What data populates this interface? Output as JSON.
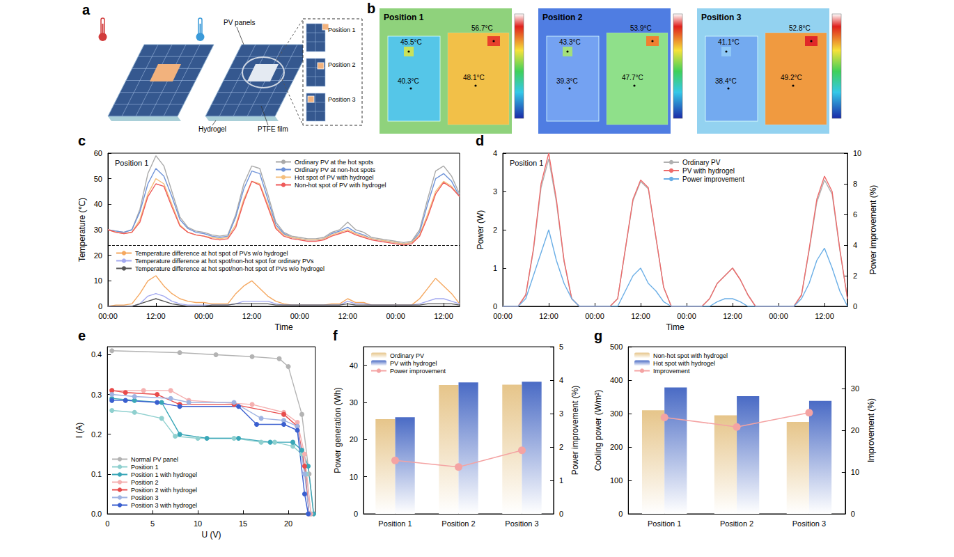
{
  "figure": {
    "panel_labels": [
      "a",
      "b",
      "c",
      "d",
      "e",
      "f",
      "g"
    ],
    "a": {
      "pv_panels": "PV panels",
      "hydrogel": "Hydrogel",
      "ptfe_film": "PTFE film",
      "positions": [
        "Position 1",
        "Position 2",
        "Position 3"
      ]
    },
    "b": {
      "images": [
        {
          "title": "Position 1",
          "readings": [
            "45.5°C",
            "56.7°C",
            "40.3°C",
            "48.1°C"
          ]
        },
        {
          "title": "Position 2",
          "readings": [
            "43.3°C",
            "53.9°C",
            "39.3°C",
            "47.7°C"
          ]
        },
        {
          "title": "Position 3",
          "readings": [
            "41.1°C",
            "52.8°C",
            "38.4°C",
            "49.2°C"
          ]
        }
      ]
    }
  },
  "chart_data": [
    {
      "type": "line",
      "annotation": "Position 1",
      "xlabel": "Time",
      "ylabel": "Temperature (℃)",
      "x": [
        0,
        2,
        4,
        6,
        8,
        10,
        12,
        14,
        16,
        18,
        20,
        22,
        24,
        26,
        28,
        30,
        32,
        34,
        36,
        38,
        40,
        42,
        44,
        46,
        48,
        50,
        52,
        54,
        56,
        58,
        60,
        62,
        64,
        66,
        68,
        70,
        72,
        74,
        76,
        78,
        80,
        82,
        84,
        86,
        88
      ],
      "xlim": [
        0,
        88
      ],
      "xticks": [
        {
          "value": 0,
          "label": "00:00"
        },
        {
          "value": 12,
          "label": "12:00"
        },
        {
          "value": 24,
          "label": "00:00"
        },
        {
          "value": 36,
          "label": "12:00"
        },
        {
          "value": 48,
          "label": "00:00"
        },
        {
          "value": 60,
          "label": "12:00"
        },
        {
          "value": 72,
          "label": "00:00"
        },
        {
          "value": 84,
          "label": "12:00"
        }
      ],
      "ylim": [
        0,
        60
      ],
      "yticks": [
        0,
        10,
        20,
        30,
        40,
        50,
        60
      ],
      "separator_y": 24,
      "grid": false,
      "legend": "top",
      "series": [
        {
          "name": "Ordinary PV at the hot spots",
          "color": "#a9a9a9",
          "values": [
            30,
            29.5,
            29,
            30,
            38,
            52,
            59,
            55,
            45,
            35,
            31,
            29.5,
            29,
            28,
            27.5,
            28,
            36,
            48,
            55,
            54,
            44,
            33,
            29,
            27.5,
            27,
            26.5,
            26.5,
            27,
            29,
            30,
            33,
            30,
            29,
            27,
            26.5,
            26,
            25.5,
            25,
            25.5,
            30,
            42,
            53,
            55,
            51,
            44
          ]
        },
        {
          "name": "Ordinary PV at non-hot spots",
          "color": "#6f93d8",
          "values": [
            30,
            29.5,
            29,
            30,
            37,
            48,
            54,
            51,
            43,
            34,
            30.5,
            29,
            28.5,
            27.5,
            27,
            27.5,
            35,
            46,
            53,
            52,
            42,
            32,
            28.5,
            27,
            26.5,
            26,
            26,
            26.5,
            28.5,
            29.5,
            31,
            29,
            28,
            26.5,
            26,
            25.5,
            25,
            24.5,
            25,
            29,
            40,
            50,
            52,
            49,
            43
          ]
        },
        {
          "name": "Hot spot of PV with hydrogel",
          "color": "#f5bf7d",
          "values": [
            30,
            29,
            28.5,
            29,
            34,
            44,
            50,
            48,
            40,
            32,
            29,
            28,
            27.5,
            27,
            26.5,
            27,
            32,
            42,
            49,
            48,
            40,
            31,
            28,
            27,
            26.5,
            26,
            26,
            26.5,
            28,
            29,
            30,
            28.5,
            27.5,
            26.5,
            26,
            25.5,
            25,
            24.5,
            25,
            28,
            36,
            45,
            49,
            47,
            43
          ]
        },
        {
          "name": "Non-hot spot of PV with hydrogel",
          "color": "#ee5a5a",
          "values": [
            30,
            29,
            28.5,
            29,
            33,
            43,
            48,
            47,
            39,
            31.5,
            29,
            28,
            27.5,
            26.5,
            26,
            26.5,
            31,
            41,
            49,
            47.5,
            39,
            30.5,
            27.5,
            26.5,
            26,
            25.5,
            25.5,
            26,
            27.5,
            28.5,
            29.5,
            28,
            27,
            26,
            25.5,
            25,
            24.5,
            24,
            24.5,
            27.5,
            35,
            44,
            48.5,
            46.5,
            43
          ]
        },
        {
          "name": "Temperature difference at hot spot of PVs w/o hydrogel",
          "color": "#f5a860",
          "values": [
            0,
            0.5,
            0.5,
            1,
            5,
            10,
            12,
            8,
            5,
            3,
            2,
            1.5,
            1.5,
            1,
            1,
            1,
            5,
            8,
            10,
            7,
            4,
            2,
            1,
            0.5,
            0.5,
            0.5,
            0.5,
            0.5,
            1,
            1,
            3,
            1.5,
            1.5,
            0.5,
            0.5,
            0.5,
            0.5,
            0.5,
            0.5,
            3,
            7,
            11,
            8,
            5,
            1
          ]
        },
        {
          "name": "Temperature difference at hot spot/non-hot spot for ordinary PVs",
          "color": "#a3a9f0",
          "values": [
            0,
            0,
            0,
            0,
            1,
            4,
            5,
            4,
            2,
            1,
            0.5,
            0.5,
            0.5,
            0.5,
            0.5,
            0.5,
            1,
            2,
            2,
            2,
            2,
            1,
            0.5,
            0.5,
            0.5,
            0.5,
            0.5,
            0.5,
            0.5,
            0.5,
            2,
            1,
            1,
            0.5,
            0.5,
            0.5,
            0.5,
            0.5,
            0.5,
            1,
            2,
            3,
            3,
            2,
            1
          ]
        },
        {
          "name": "Temperature difference at hot spot/non-hot spot of PVs w/o hydrogel",
          "color": "#555555",
          "values": [
            0,
            0,
            0,
            0,
            1,
            2,
            3,
            2,
            1,
            0.5,
            0,
            0,
            0,
            0.5,
            0.5,
            0.5,
            1,
            1,
            1,
            1,
            1,
            0.5,
            0.5,
            0.5,
            0.5,
            0.5,
            0.5,
            0.5,
            0.5,
            0.5,
            1,
            0.5,
            0.5,
            0.5,
            0.5,
            0.5,
            0.5,
            0.5,
            0.5,
            0.5,
            1,
            1,
            1,
            1,
            0.5
          ]
        }
      ]
    },
    {
      "type": "line",
      "annotation": "Position 1",
      "xlabel": "Time",
      "ylabel": "Power (W)",
      "y2label": "Power improvement (%)",
      "x": [
        0,
        2,
        4,
        6,
        8,
        10,
        12,
        14,
        16,
        18,
        20,
        22,
        24,
        26,
        28,
        30,
        32,
        34,
        36,
        38,
        40,
        42,
        44,
        46,
        48,
        50,
        52,
        54,
        56,
        58,
        60,
        62,
        64,
        66,
        68,
        70,
        72,
        74,
        76,
        78,
        80,
        82,
        84,
        86,
        88,
        90
      ],
      "xlim": [
        0,
        90
      ],
      "xticks": [
        {
          "value": 0,
          "label": "00:00"
        },
        {
          "value": 12,
          "label": "12:00"
        },
        {
          "value": 24,
          "label": "00:00"
        },
        {
          "value": 36,
          "label": "12:00"
        },
        {
          "value": 48,
          "label": "00:00"
        },
        {
          "value": 60,
          "label": "12:00"
        },
        {
          "value": 72,
          "label": "00:00"
        },
        {
          "value": 84,
          "label": "12:00"
        }
      ],
      "ylim": [
        0,
        4
      ],
      "yticks": [
        0,
        1,
        2,
        3,
        4
      ],
      "y2lim": [
        0,
        10
      ],
      "y2ticks": [
        0,
        2,
        4,
        6,
        8,
        10
      ],
      "grid": false,
      "legend": "top",
      "series": [
        {
          "name": "Ordinary PV",
          "color": "#b0b0b0",
          "values": [
            0,
            0,
            0,
            0.29,
            1.46,
            3.1,
            3.85,
            2.72,
            1.17,
            0.2,
            0,
            0,
            0,
            0,
            0,
            0.2,
            1.48,
            2.76,
            3.26,
            3.07,
            1.78,
            0.5,
            0,
            0,
            0,
            0,
            0,
            0.2,
            0.6,
            0.8,
            1.0,
            0.7,
            0.3,
            0,
            0,
            0,
            0,
            0,
            0,
            0.29,
            1.46,
            2.72,
            3.3,
            2.93,
            1.47,
            0.2
          ]
        },
        {
          "name": "PV with hydrogel",
          "color": "#ee6b6b",
          "values": [
            0,
            0,
            0,
            0.3,
            1.5,
            3.2,
            4.0,
            2.8,
            1.2,
            0.2,
            0,
            0,
            0,
            0,
            0,
            0.2,
            1.5,
            2.8,
            3.3,
            3.1,
            1.8,
            0.5,
            0,
            0,
            0,
            0,
            0,
            0.2,
            0.6,
            0.8,
            1.0,
            0.7,
            0.3,
            0,
            0,
            0,
            0,
            0,
            0,
            0.3,
            1.5,
            2.8,
            3.4,
            3.0,
            1.5,
            0.2
          ]
        },
        {
          "name": "Power improvement",
          "color": "#6aaee6",
          "axis": "y2",
          "values": [
            0,
            0,
            0,
            0.5,
            2,
            3.5,
            5,
            3,
            1.5,
            0.5,
            0,
            0,
            0,
            0,
            0,
            0,
            1,
            2,
            2.5,
            1.5,
            1,
            0.3,
            0,
            0,
            0,
            0,
            0,
            0,
            0.3,
            0.5,
            0.5,
            0.3,
            0,
            0,
            0,
            0,
            0,
            0,
            0,
            0.5,
            1.5,
            3,
            3.8,
            2.5,
            1,
            0
          ]
        }
      ]
    },
    {
      "type": "line",
      "xlabel": "U (V)",
      "ylabel": "I (A)",
      "xlim": [
        0,
        23
      ],
      "xticks": [
        0,
        5,
        10,
        15,
        20
      ],
      "ylim": [
        0,
        0.42
      ],
      "yticks": [
        {
          "value": 0,
          "label": "0.0"
        },
        0.1,
        0.2,
        0.3,
        0.4
      ],
      "marker": "circle",
      "grid": false,
      "legend": "bottom-left",
      "series": [
        {
          "name": "Normal PV panel",
          "color": "#b3b3b3",
          "x": [
            0.5,
            8,
            12,
            16,
            19,
            20,
            21.5,
            22.3,
            22.8
          ],
          "values": [
            0.41,
            0.405,
            0.4,
            0.395,
            0.39,
            0.37,
            0.25,
            0.1,
            0
          ]
        },
        {
          "name": "Position 1",
          "color": "#8fd0cf",
          "x": [
            0.5,
            3,
            6,
            7.5,
            10,
            14,
            17,
            18.5,
            20.5,
            21.5,
            22,
            22.5
          ],
          "values": [
            0.26,
            0.255,
            0.24,
            0.195,
            0.19,
            0.19,
            0.18,
            0.18,
            0.17,
            0.15,
            0.1,
            0
          ]
        },
        {
          "name": "Position 1 with hydrogel",
          "color": "#3aa7b8",
          "x": [
            0.5,
            3,
            6,
            8,
            11,
            14.5,
            18,
            20.5,
            21.5,
            22.2,
            22.8
          ],
          "values": [
            0.29,
            0.285,
            0.28,
            0.2,
            0.19,
            0.19,
            0.18,
            0.18,
            0.16,
            0.12,
            0
          ]
        },
        {
          "name": "Position 2",
          "color": "#f5b0b0",
          "x": [
            0.5,
            4,
            7,
            9,
            16,
            19.5,
            21,
            21.8,
            22.5
          ],
          "values": [
            0.31,
            0.31,
            0.31,
            0.285,
            0.275,
            0.255,
            0.23,
            0.15,
            0
          ]
        },
        {
          "name": "Position 2 with hydrogel",
          "color": "#e84c4c",
          "x": [
            0.5,
            2,
            5.5,
            8,
            14,
            19.5,
            21,
            21.8,
            22.3
          ],
          "values": [
            0.31,
            0.305,
            0.3,
            0.275,
            0.275,
            0.25,
            0.22,
            0.12,
            0
          ]
        },
        {
          "name": "Position 3",
          "color": "#9fb3e2",
          "x": [
            0.5,
            3,
            7,
            9,
            14,
            17,
            19.5,
            21,
            21.8,
            22.3
          ],
          "values": [
            0.3,
            0.295,
            0.29,
            0.28,
            0.28,
            0.24,
            0.235,
            0.22,
            0.1,
            0
          ]
        },
        {
          "name": "Position 3 with hydrogel",
          "color": "#3a5fcf",
          "x": [
            0.5,
            2,
            5.5,
            8,
            14.5,
            16.5,
            19.5,
            21,
            21.8,
            22.2
          ],
          "values": [
            0.285,
            0.285,
            0.28,
            0.27,
            0.27,
            0.225,
            0.225,
            0.21,
            0.05,
            0
          ]
        }
      ]
    },
    {
      "type": "bar",
      "categories": [
        "Position 1",
        "Position 2",
        "Position 3"
      ],
      "ylabel": "Power generation (Wh)",
      "y2label": "Power improvement (%)",
      "ylim": [
        0,
        45
      ],
      "yticks": [
        0,
        10,
        20,
        30,
        40
      ],
      "y2lim": [
        0,
        5
      ],
      "y2ticks": [
        0,
        1,
        2,
        3,
        4,
        5
      ],
      "grid": false,
      "legend": "top-left",
      "series": [
        {
          "name": "Ordinary PV",
          "color": "#e6c58a",
          "values": [
            25.5,
            34.7,
            34.8
          ]
        },
        {
          "name": "PV with hydrogel",
          "color": "#4a6bc5",
          "values": [
            26.0,
            35.4,
            35.6
          ]
        },
        {
          "name": "Power improvement",
          "type": "line",
          "axis": "y2",
          "color": "#f4a3a3",
          "marker": "circle",
          "values": [
            1.6,
            1.4,
            1.9
          ]
        }
      ]
    },
    {
      "type": "bar",
      "categories": [
        "Position 1",
        "Position 2",
        "Position 3"
      ],
      "ylabel": "Cooling power (W/m²)",
      "y2label": "Improvement (%)",
      "ylim": [
        0,
        500
      ],
      "yticks": [
        0,
        100,
        200,
        300,
        400,
        500
      ],
      "y2lim": [
        0,
        40
      ],
      "y2ticks": [
        0,
        10,
        20,
        30
      ],
      "grid": false,
      "legend": "top-left",
      "series": [
        {
          "name": "Non-hot spot with hydrogel",
          "color": "#e6c58a",
          "values": [
            310,
            295,
            275
          ]
        },
        {
          "name": "Hot spot with hydrogel",
          "color": "#4a6bc5",
          "values": [
            378,
            352,
            338
          ]
        },
        {
          "name": "Improvement",
          "type": "line",
          "axis": "y2",
          "color": "#f4a3a3",
          "marker": "circle",
          "values": [
            23.1,
            20.8,
            24.2
          ]
        }
      ]
    }
  ]
}
